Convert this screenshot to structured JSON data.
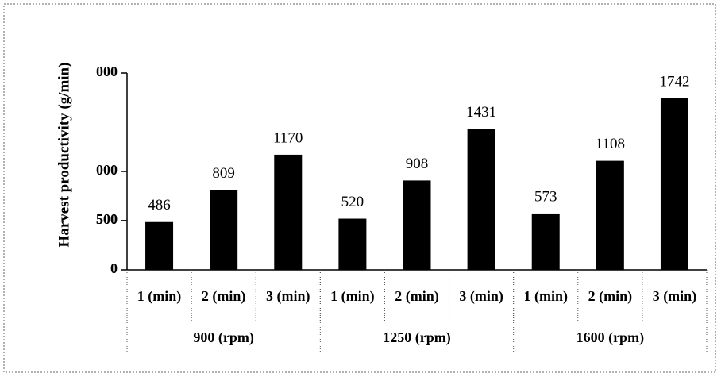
{
  "chart_data": {
    "type": "bar",
    "y_label": "Harvest productivity (g/min)",
    "categories": [
      "1 (min)",
      "2 (min)",
      "3 (min)",
      "1 (min)",
      "2 (min)",
      "3 (min)",
      "1 (min)",
      "2 (min)",
      "3 (min)"
    ],
    "groups": [
      "900 (rpm)",
      "1250 (rpm)",
      "1600 (rpm)"
    ],
    "values": [
      486,
      809,
      1170,
      520,
      908,
      1431,
      573,
      1108,
      1742
    ],
    "color": "#000000",
    "ylim": [
      0,
      2000
    ],
    "yticks": [
      0,
      500,
      {
        "value": 1000,
        "label": "000"
      },
      500.0001,
      {
        "value": 2000,
        "label": "000"
      }
    ],
    "grid": false
  }
}
